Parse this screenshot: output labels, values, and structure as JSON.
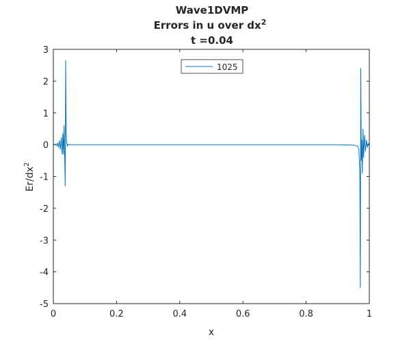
{
  "chart_data": {
    "type": "line",
    "title_lines": [
      "Wave1DVMP",
      "Errors in u over dx",
      "t =0.04"
    ],
    "title_superscript": "2",
    "xlabel": "x",
    "ylabel": "Er/dx",
    "ylabel_superscript": "2",
    "xlim": [
      0,
      1
    ],
    "ylim": [
      -5,
      3
    ],
    "xticks": [
      "0",
      "0.2",
      "0.4",
      "0.6",
      "0.8",
      "1"
    ],
    "yticks": [
      "3",
      "2",
      "1",
      "0",
      "-1",
      "-2",
      "-3",
      "-4",
      "-5"
    ],
    "grid": false,
    "legend_position": "top-center",
    "series": [
      {
        "name": "1025",
        "color": "#0072BD",
        "x": [
          0.0,
          0.005,
          0.01,
          0.013,
          0.016,
          0.019,
          0.022,
          0.025,
          0.028,
          0.03,
          0.032,
          0.034,
          0.036,
          0.0375,
          0.039,
          0.0405,
          0.042,
          0.044,
          0.047,
          0.05,
          0.1,
          0.2,
          0.3,
          0.4,
          0.5,
          0.6,
          0.7,
          0.8,
          0.9,
          0.94,
          0.955,
          0.963,
          0.967,
          0.97,
          0.9715,
          0.973,
          0.9745,
          0.976,
          0.978,
          0.98,
          0.982,
          0.985,
          0.988,
          0.991,
          0.994,
          0.997,
          1.0
        ],
        "y": [
          0.0,
          0.02,
          -0.03,
          0.05,
          -0.08,
          0.12,
          -0.15,
          0.22,
          -0.3,
          0.35,
          -0.3,
          0.6,
          -0.4,
          -1.3,
          2.65,
          0.4,
          0.1,
          -0.05,
          0.02,
          0.0,
          0.0,
          0.0,
          0.0,
          0.0,
          0.0,
          0.0,
          0.0,
          0.0,
          0.0,
          -0.01,
          -0.02,
          -0.05,
          -0.15,
          -0.9,
          -4.5,
          2.4,
          -0.5,
          0.15,
          -0.9,
          0.5,
          -0.4,
          0.3,
          -0.2,
          0.15,
          -0.08,
          0.04,
          0.0
        ]
      }
    ]
  }
}
